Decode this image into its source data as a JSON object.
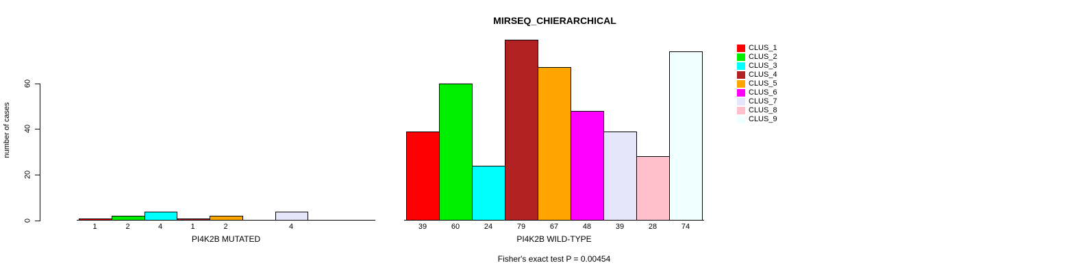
{
  "title": "MIRSEQ_CHIERARCHICAL",
  "annotation": "Fisher's exact test P = 0.00454",
  "y_axis": {
    "label": "number of cases",
    "ticks": [
      0,
      20,
      40,
      60
    ]
  },
  "legend": {
    "position": "right-outside",
    "entries": [
      {
        "label": "CLUS_1",
        "color": "#FF0000"
      },
      {
        "label": "CLUS_2",
        "color": "#00EE00"
      },
      {
        "label": "CLUS_3",
        "color": "#00FFFF"
      },
      {
        "label": "CLUS_4",
        "color": "#B22222"
      },
      {
        "label": "CLUS_5",
        "color": "#FFA500"
      },
      {
        "label": "CLUS_6",
        "color": "#FF00FF"
      },
      {
        "label": "CLUS_7",
        "color": "#E6E6FA"
      },
      {
        "label": "CLUS_8",
        "color": "#FFC0CB"
      },
      {
        "label": "CLUS_9",
        "color": "#F0FFFF"
      }
    ]
  },
  "chart_data": [
    {
      "type": "bar",
      "title": "MIRSEQ_CHIERARCHICAL",
      "xlabel": "PI4K2B MUTATED",
      "ylabel": "number of cases",
      "categories": [
        "CLUS_1",
        "CLUS_2",
        "CLUS_3",
        "CLUS_4",
        "CLUS_5",
        "CLUS_6",
        "CLUS_7",
        "CLUS_8",
        "CLUS_9"
      ],
      "values": [
        1,
        2,
        4,
        1,
        2,
        0,
        4,
        0,
        0
      ],
      "bar_labels": [
        "1",
        "2",
        "4",
        "1",
        "2",
        "",
        "4",
        "",
        ""
      ],
      "colors": [
        "#FF0000",
        "#00EE00",
        "#00FFFF",
        "#B22222",
        "#FFA500",
        "#FF00FF",
        "#E6E6FA",
        "#FFC0CB",
        "#F0FFFF"
      ],
      "ylim": [
        0,
        84
      ],
      "yticks": [
        0,
        20,
        40,
        60
      ],
      "grid": false
    },
    {
      "type": "bar",
      "xlabel": "PI4K2B WILD-TYPE",
      "categories": [
        "CLUS_1",
        "CLUS_2",
        "CLUS_3",
        "CLUS_4",
        "CLUS_5",
        "CLUS_6",
        "CLUS_7",
        "CLUS_8",
        "CLUS_9"
      ],
      "values": [
        39,
        60,
        24,
        79,
        67,
        48,
        39,
        28,
        74
      ],
      "bar_labels": [
        "39",
        "60",
        "24",
        "79",
        "67",
        "48",
        "39",
        "28",
        "74"
      ],
      "colors": [
        "#FF0000",
        "#00EE00",
        "#00FFFF",
        "#B22222",
        "#FFA500",
        "#FF00FF",
        "#E6E6FA",
        "#FFC0CB",
        "#F0FFFF"
      ],
      "ylim": [
        0,
        84
      ],
      "grid": false
    }
  ]
}
